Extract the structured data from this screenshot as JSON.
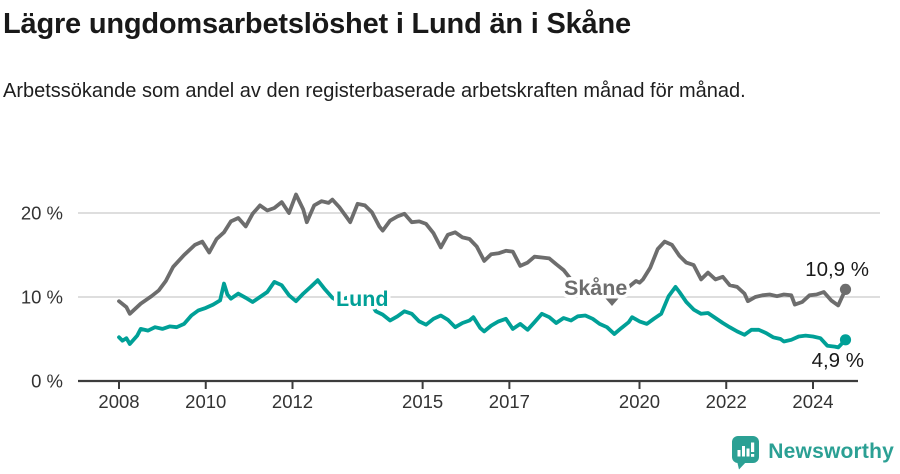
{
  "header": {
    "title": "Lägre ungdomsarbetslöshet i Lund än i Skåne",
    "subtitle": "Arbetssökande som andel av den registerbaserade arbetskraften månad för månad."
  },
  "footer": {
    "brand": "Newsworthy"
  },
  "colors": {
    "skane": "#6d6d6d",
    "lund": "#00a097",
    "grid": "#dadada",
    "axis": "#3c3c3c",
    "tick_text": "#333333",
    "value_label_text": "#1a1a1a",
    "logo": "#2ba094",
    "background": "#ffffff"
  },
  "chart_data": {
    "type": "line",
    "x_unit": "year (monthly observations)",
    "xlim": [
      2007.0,
      2025.5
    ],
    "ylim": [
      0,
      24
    ],
    "grid": "horizontal",
    "xticks": [
      2008,
      2010,
      2012,
      2015,
      2017,
      2020,
      2022,
      2024
    ],
    "xtick_labels": [
      "2008",
      "2010",
      "2012",
      "2015",
      "2017",
      "2020",
      "2022",
      "2024"
    ],
    "yticks": [
      0,
      10,
      20
    ],
    "ytick_labels": [
      "0 %",
      "10 %",
      "20 %"
    ],
    "legend_position": "inline-labels-on-lines",
    "series": [
      {
        "id": "skane",
        "name": "Skåne",
        "color": "#6d6d6d",
        "end_label": "10,9 %",
        "last_value": 10.9,
        "points": [
          [
            2008.0,
            9.5
          ],
          [
            2008.17,
            8.8
          ],
          [
            2008.25,
            8.0
          ],
          [
            2008.5,
            9.2
          ],
          [
            2008.75,
            10.1
          ],
          [
            2008.92,
            10.8
          ],
          [
            2009.08,
            11.9
          ],
          [
            2009.25,
            13.6
          ],
          [
            2009.5,
            15.0
          ],
          [
            2009.75,
            16.2
          ],
          [
            2009.92,
            16.6
          ],
          [
            2010.08,
            15.3
          ],
          [
            2010.25,
            16.9
          ],
          [
            2010.42,
            17.7
          ],
          [
            2010.58,
            19.0
          ],
          [
            2010.75,
            19.4
          ],
          [
            2010.92,
            18.4
          ],
          [
            2011.08,
            19.9
          ],
          [
            2011.25,
            20.9
          ],
          [
            2011.42,
            20.3
          ],
          [
            2011.58,
            20.6
          ],
          [
            2011.75,
            21.3
          ],
          [
            2011.92,
            20.0
          ],
          [
            2012.08,
            22.2
          ],
          [
            2012.25,
            20.4
          ],
          [
            2012.33,
            18.9
          ],
          [
            2012.5,
            20.9
          ],
          [
            2012.67,
            21.4
          ],
          [
            2012.83,
            21.2
          ],
          [
            2012.92,
            21.6
          ],
          [
            2013.08,
            20.7
          ],
          [
            2013.25,
            19.5
          ],
          [
            2013.33,
            18.9
          ],
          [
            2013.5,
            21.1
          ],
          [
            2013.67,
            20.9
          ],
          [
            2013.83,
            20.1
          ],
          [
            2014.0,
            18.4
          ],
          [
            2014.08,
            17.9
          ],
          [
            2014.25,
            19.1
          ],
          [
            2014.42,
            19.6
          ],
          [
            2014.58,
            19.9
          ],
          [
            2014.75,
            18.9
          ],
          [
            2014.92,
            19.0
          ],
          [
            2015.08,
            18.7
          ],
          [
            2015.25,
            17.6
          ],
          [
            2015.42,
            15.9
          ],
          [
            2015.58,
            17.4
          ],
          [
            2015.75,
            17.7
          ],
          [
            2015.92,
            17.1
          ],
          [
            2016.08,
            16.9
          ],
          [
            2016.25,
            16.0
          ],
          [
            2016.42,
            14.3
          ],
          [
            2016.58,
            15.1
          ],
          [
            2016.75,
            15.2
          ],
          [
            2016.92,
            15.5
          ],
          [
            2017.08,
            15.4
          ],
          [
            2017.25,
            13.7
          ],
          [
            2017.42,
            14.1
          ],
          [
            2017.58,
            14.8
          ],
          [
            2017.75,
            14.7
          ],
          [
            2017.92,
            14.6
          ],
          [
            2018.08,
            13.9
          ],
          [
            2018.25,
            13.2
          ],
          [
            2018.42,
            12.1
          ],
          [
            2018.58,
            11.9
          ],
          [
            2018.75,
            11.6
          ],
          [
            2018.92,
            11.3
          ],
          [
            2019.08,
            11.2
          ],
          [
            2019.25,
            10.9
          ],
          [
            2019.42,
            10.4
          ],
          [
            2019.58,
            10.7
          ],
          [
            2019.75,
            11.2
          ],
          [
            2019.92,
            11.9
          ],
          [
            2020.0,
            11.7
          ],
          [
            2020.08,
            12.1
          ],
          [
            2020.25,
            13.5
          ],
          [
            2020.42,
            15.7
          ],
          [
            2020.58,
            16.6
          ],
          [
            2020.75,
            16.2
          ],
          [
            2020.92,
            14.9
          ],
          [
            2021.08,
            14.1
          ],
          [
            2021.25,
            13.8
          ],
          [
            2021.42,
            12.1
          ],
          [
            2021.58,
            12.9
          ],
          [
            2021.75,
            12.1
          ],
          [
            2021.92,
            12.4
          ],
          [
            2022.08,
            11.4
          ],
          [
            2022.25,
            11.2
          ],
          [
            2022.42,
            10.4
          ],
          [
            2022.5,
            9.5
          ],
          [
            2022.67,
            10.0
          ],
          [
            2022.83,
            10.2
          ],
          [
            2023.0,
            10.3
          ],
          [
            2023.17,
            10.1
          ],
          [
            2023.33,
            10.3
          ],
          [
            2023.5,
            10.2
          ],
          [
            2023.58,
            9.1
          ],
          [
            2023.75,
            9.4
          ],
          [
            2023.92,
            10.2
          ],
          [
            2024.08,
            10.3
          ],
          [
            2024.25,
            10.6
          ],
          [
            2024.42,
            9.6
          ],
          [
            2024.58,
            9.0
          ],
          [
            2024.75,
            10.9
          ]
        ]
      },
      {
        "id": "lund",
        "name": "Lund",
        "color": "#00a097",
        "end_label": "4,9 %",
        "last_value": 4.9,
        "points": [
          [
            2008.0,
            5.2
          ],
          [
            2008.08,
            4.8
          ],
          [
            2008.17,
            5.1
          ],
          [
            2008.25,
            4.4
          ],
          [
            2008.42,
            5.4
          ],
          [
            2008.5,
            6.2
          ],
          [
            2008.67,
            6.0
          ],
          [
            2008.83,
            6.4
          ],
          [
            2009.0,
            6.2
          ],
          [
            2009.17,
            6.5
          ],
          [
            2009.33,
            6.4
          ],
          [
            2009.5,
            6.8
          ],
          [
            2009.67,
            7.8
          ],
          [
            2009.83,
            8.4
          ],
          [
            2010.0,
            8.7
          ],
          [
            2010.17,
            9.1
          ],
          [
            2010.33,
            9.6
          ],
          [
            2010.42,
            11.6
          ],
          [
            2010.5,
            10.3
          ],
          [
            2010.58,
            9.8
          ],
          [
            2010.75,
            10.4
          ],
          [
            2010.92,
            9.9
          ],
          [
            2011.08,
            9.4
          ],
          [
            2011.25,
            10.0
          ],
          [
            2011.42,
            10.6
          ],
          [
            2011.58,
            11.8
          ],
          [
            2011.75,
            11.4
          ],
          [
            2011.92,
            10.2
          ],
          [
            2012.08,
            9.5
          ],
          [
            2012.25,
            10.4
          ],
          [
            2012.42,
            11.2
          ],
          [
            2012.58,
            12.0
          ],
          [
            2012.75,
            10.9
          ],
          [
            2012.92,
            9.9
          ],
          [
            2013.08,
            9.4
          ],
          [
            2013.25,
            9.9
          ],
          [
            2013.42,
            9.4
          ],
          [
            2013.58,
            9.1
          ],
          [
            2013.75,
            9.7
          ],
          [
            2013.92,
            8.3
          ],
          [
            2014.08,
            7.9
          ],
          [
            2014.25,
            7.2
          ],
          [
            2014.42,
            7.7
          ],
          [
            2014.58,
            8.3
          ],
          [
            2014.75,
            8.0
          ],
          [
            2014.92,
            7.1
          ],
          [
            2015.08,
            6.7
          ],
          [
            2015.25,
            7.4
          ],
          [
            2015.42,
            7.8
          ],
          [
            2015.58,
            7.3
          ],
          [
            2015.75,
            6.4
          ],
          [
            2015.92,
            6.9
          ],
          [
            2016.08,
            7.2
          ],
          [
            2016.17,
            7.6
          ],
          [
            2016.33,
            6.3
          ],
          [
            2016.42,
            5.9
          ],
          [
            2016.58,
            6.6
          ],
          [
            2016.75,
            7.1
          ],
          [
            2016.92,
            7.4
          ],
          [
            2017.08,
            6.2
          ],
          [
            2017.25,
            6.8
          ],
          [
            2017.42,
            6.1
          ],
          [
            2017.58,
            7.0
          ],
          [
            2017.75,
            8.0
          ],
          [
            2017.92,
            7.6
          ],
          [
            2018.08,
            6.9
          ],
          [
            2018.25,
            7.5
          ],
          [
            2018.42,
            7.2
          ],
          [
            2018.58,
            7.7
          ],
          [
            2018.75,
            7.8
          ],
          [
            2018.92,
            7.4
          ],
          [
            2019.08,
            6.8
          ],
          [
            2019.25,
            6.4
          ],
          [
            2019.42,
            5.6
          ],
          [
            2019.58,
            6.3
          ],
          [
            2019.75,
            7.0
          ],
          [
            2019.83,
            7.6
          ],
          [
            2020.0,
            7.1
          ],
          [
            2020.17,
            6.8
          ],
          [
            2020.33,
            7.4
          ],
          [
            2020.5,
            8.0
          ],
          [
            2020.67,
            10.1
          ],
          [
            2020.83,
            11.2
          ],
          [
            2020.92,
            10.6
          ],
          [
            2021.08,
            9.4
          ],
          [
            2021.25,
            8.5
          ],
          [
            2021.42,
            8.0
          ],
          [
            2021.58,
            8.1
          ],
          [
            2021.75,
            7.5
          ],
          [
            2021.92,
            6.9
          ],
          [
            2022.08,
            6.4
          ],
          [
            2022.25,
            5.9
          ],
          [
            2022.42,
            5.5
          ],
          [
            2022.58,
            6.1
          ],
          [
            2022.75,
            6.1
          ],
          [
            2022.92,
            5.7
          ],
          [
            2023.08,
            5.2
          ],
          [
            2023.25,
            5.0
          ],
          [
            2023.33,
            4.7
          ],
          [
            2023.5,
            4.9
          ],
          [
            2023.67,
            5.3
          ],
          [
            2023.83,
            5.4
          ],
          [
            2024.0,
            5.3
          ],
          [
            2024.17,
            5.1
          ],
          [
            2024.33,
            4.2
          ],
          [
            2024.5,
            4.1
          ],
          [
            2024.58,
            4.0
          ],
          [
            2024.75,
            4.9
          ]
        ]
      }
    ]
  }
}
